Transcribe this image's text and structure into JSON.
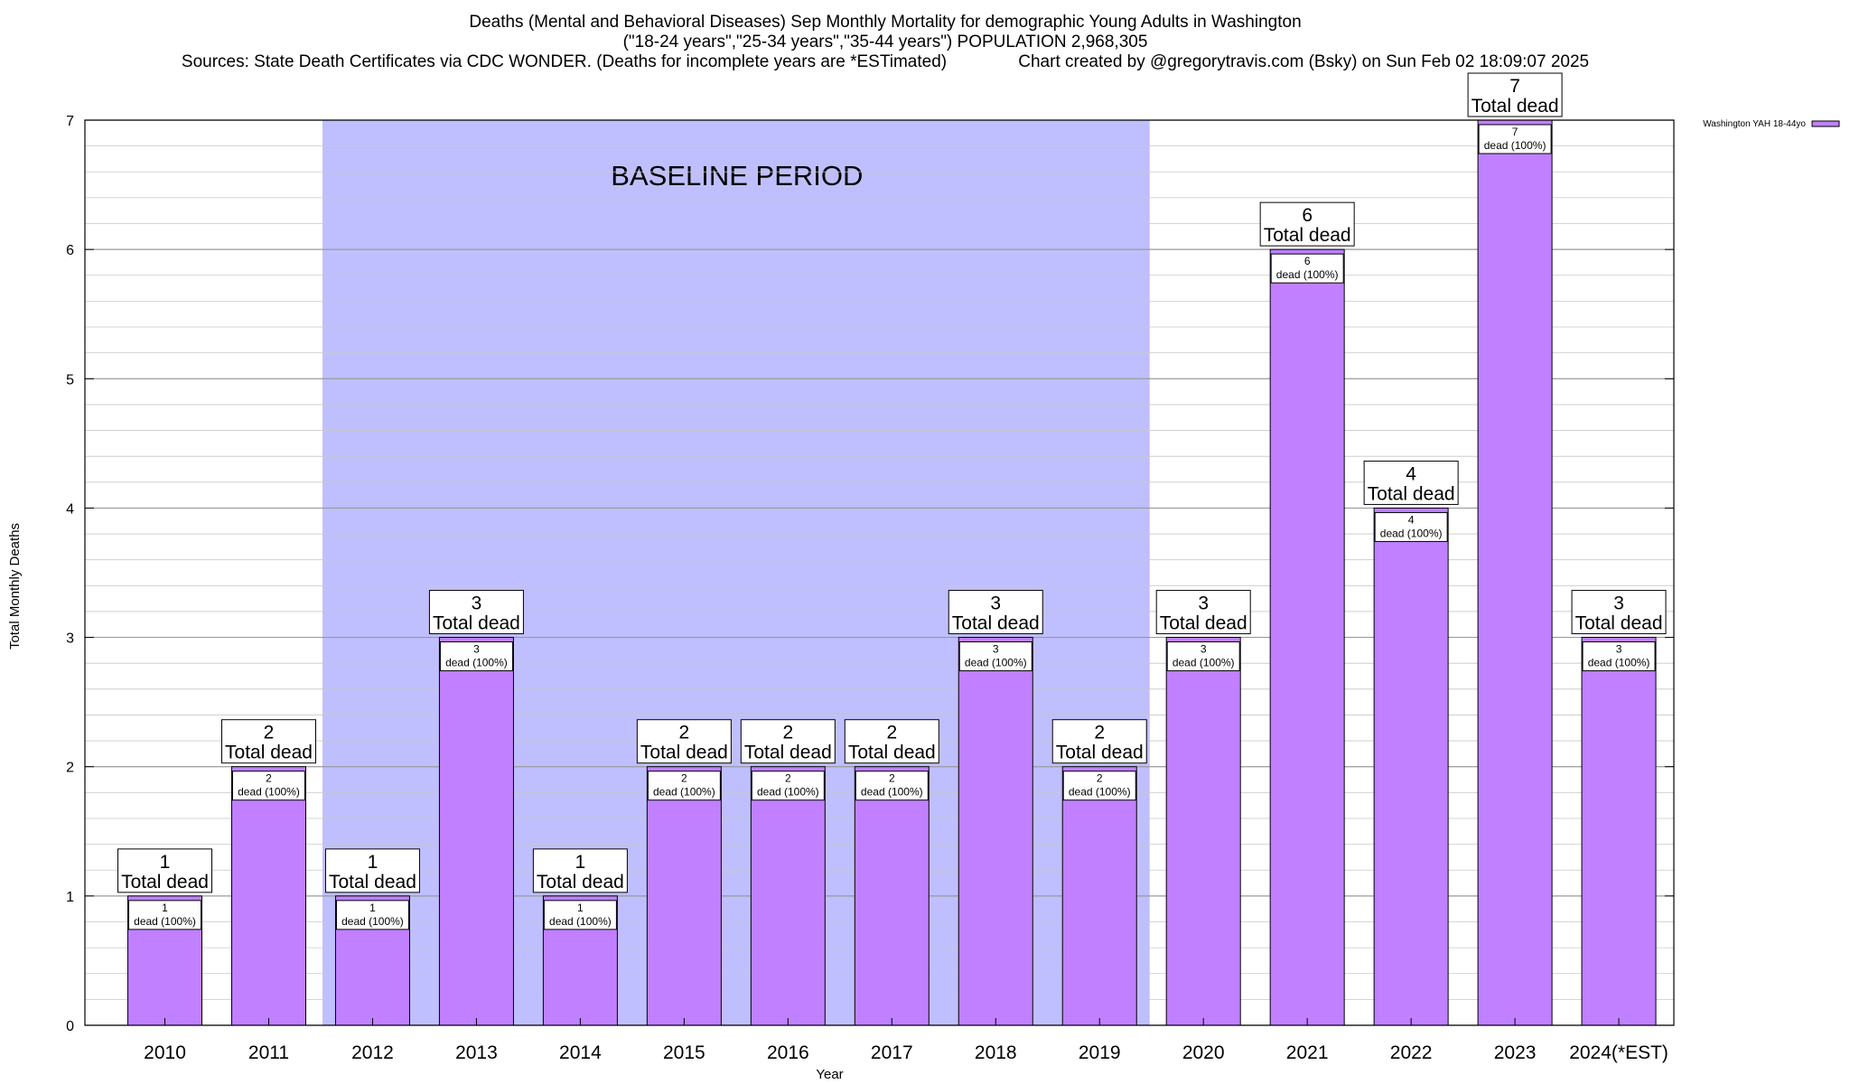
{
  "title": {
    "line1": "Deaths (Mental and Behavioral Diseases) Sep Monthly Mortality for demographic Young Adults in Washington",
    "line2": "(\"18-24 years\",\"25-34 years\",\"35-44 years\") POPULATION 2,968,305",
    "line3": "Sources: State Death Certificates via CDC WONDER. (Deaths for incomplete years are *ESTimated)               Chart created by @gregorytravis.com (Bsky) on Sun Feb 02 18:09:07 2025"
  },
  "chart_data": {
    "type": "bar",
    "categories": [
      "2010",
      "2011",
      "2012",
      "2013",
      "2014",
      "2015",
      "2016",
      "2017",
      "2018",
      "2019",
      "2020",
      "2021",
      "2022",
      "2023",
      "2024(*EST)"
    ],
    "series": [
      {
        "name": "Washington YAH 18-44yo",
        "values": [
          1,
          2,
          1,
          3,
          1,
          2,
          2,
          2,
          3,
          2,
          3,
          6,
          4,
          7,
          3
        ],
        "color": "#c080ff"
      }
    ],
    "bar_label_template": "dead (100%)",
    "total_label_template": "Total dead",
    "xlabel": "Year",
    "ylabel": "Total Monthly Deaths",
    "ylim": [
      0,
      7
    ],
    "yticks": [
      0,
      1,
      2,
      3,
      4,
      5,
      6,
      7
    ],
    "grid": true,
    "legend_position": "top-right",
    "baseline": {
      "label": "BASELINE PERIOD",
      "start": "2012",
      "end": "2019",
      "color": "#bfbfff"
    }
  }
}
